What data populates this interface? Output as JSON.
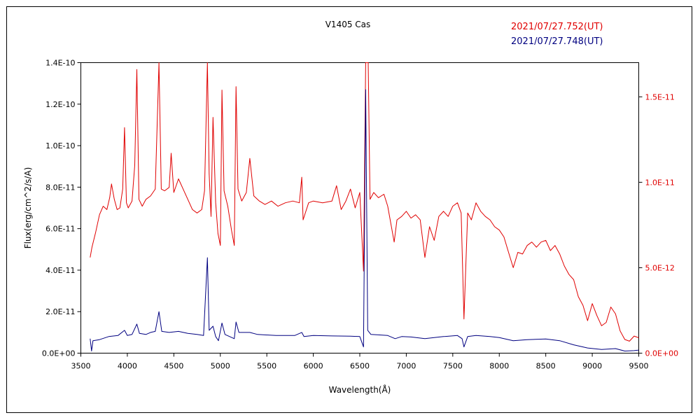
{
  "chart_data": {
    "type": "line",
    "title": "V1405 Cas",
    "xlabel": "Wavelength(Å)",
    "ylabel": "Flux(erg/cm^2/s/A)",
    "xlim": [
      3500,
      9500
    ],
    "ylim_left": [
      0,
      1.4e-10
    ],
    "ylim_right": [
      0,
      1.7e-11
    ],
    "x_ticks": [
      3500,
      4000,
      4500,
      5000,
      5500,
      6000,
      6500,
      7000,
      7500,
      8000,
      8500,
      9000,
      9500
    ],
    "y_left_ticks": [
      {
        "value": 0,
        "label": "0.0E+00"
      },
      {
        "value": 2e-11,
        "label": "2.0E-11"
      },
      {
        "value": 4e-11,
        "label": "4.0E-11"
      },
      {
        "value": 6e-11,
        "label": "6.0E-11"
      },
      {
        "value": 8e-11,
        "label": "8.0E-11"
      },
      {
        "value": 1e-10,
        "label": "1.0E-10"
      },
      {
        "value": 1.2e-10,
        "label": "1.2E-10"
      },
      {
        "value": 1.4e-10,
        "label": "1.4E-10"
      }
    ],
    "y_right_ticks": [
      {
        "value": 0,
        "label": "0.0E+00"
      },
      {
        "value": 5e-12,
        "label": "5.0E-12"
      },
      {
        "value": 1e-11,
        "label": "1.0E-11"
      },
      {
        "value": 1.5e-11,
        "label": "1.5E-11"
      }
    ],
    "grid": false,
    "legend_position": "top-right",
    "series": [
      {
        "name": "2021/07/27.752(UT)",
        "color": "#e00000",
        "axis": "right",
        "points": [
          [
            3600,
            5.6e-12
          ],
          [
            3620,
            6.2e-12
          ],
          [
            3660,
            7.1e-12
          ],
          [
            3700,
            8.1e-12
          ],
          [
            3740,
            8.6e-12
          ],
          [
            3780,
            8.4e-12
          ],
          [
            3810,
            9.1e-12
          ],
          [
            3830,
            9.9e-12
          ],
          [
            3860,
            9e-12
          ],
          [
            3890,
            8.4e-12
          ],
          [
            3920,
            8.5e-12
          ],
          [
            3950,
            9.6e-12
          ],
          [
            3970,
            1.32e-11
          ],
          [
            3990,
            8.8e-12
          ],
          [
            4010,
            8.5e-12
          ],
          [
            4050,
            8.9e-12
          ],
          [
            4080,
            1.1e-11
          ],
          [
            4102,
            1.66e-11
          ],
          [
            4125,
            9e-12
          ],
          [
            4160,
            8.6e-12
          ],
          [
            4200,
            9e-12
          ],
          [
            4250,
            9.2e-12
          ],
          [
            4300,
            9.6e-12
          ],
          [
            4320,
            1.32e-11
          ],
          [
            4340,
            1.71e-11
          ],
          [
            4365,
            9.6e-12
          ],
          [
            4400,
            9.5e-12
          ],
          [
            4450,
            9.7e-12
          ],
          [
            4471,
            1.17e-11
          ],
          [
            4500,
            9.4e-12
          ],
          [
            4550,
            1.02e-11
          ],
          [
            4600,
            9.6e-12
          ],
          [
            4650,
            9e-12
          ],
          [
            4700,
            8.4e-12
          ],
          [
            4750,
            8.2e-12
          ],
          [
            4800,
            8.4e-12
          ],
          [
            4830,
            9.5e-12
          ],
          [
            4861,
            1.71e-11
          ],
          [
            4880,
            1.05e-11
          ],
          [
            4900,
            8e-12
          ],
          [
            4921,
            1.38e-11
          ],
          [
            4950,
            8.8e-12
          ],
          [
            4975,
            7e-12
          ],
          [
            5000,
            6.3e-12
          ],
          [
            5018,
            1.54e-11
          ],
          [
            5040,
            9.5e-12
          ],
          [
            5080,
            8.6e-12
          ],
          [
            5120,
            7.2e-12
          ],
          [
            5150,
            6.3e-12
          ],
          [
            5169,
            1.56e-11
          ],
          [
            5190,
            9.6e-12
          ],
          [
            5230,
            8.9e-12
          ],
          [
            5280,
            9.4e-12
          ],
          [
            5317,
            1.14e-11
          ],
          [
            5360,
            9.2e-12
          ],
          [
            5420,
            8.9e-12
          ],
          [
            5480,
            8.7e-12
          ],
          [
            5550,
            8.9e-12
          ],
          [
            5620,
            8.6e-12
          ],
          [
            5700,
            8.8e-12
          ],
          [
            5780,
            8.9e-12
          ],
          [
            5850,
            8.8e-12
          ],
          [
            5876,
            1.03e-11
          ],
          [
            5890,
            7.8e-12
          ],
          [
            5950,
            8.8e-12
          ],
          [
            6000,
            8.9e-12
          ],
          [
            6100,
            8.8e-12
          ],
          [
            6200,
            8.9e-12
          ],
          [
            6250,
            9.8e-12
          ],
          [
            6300,
            8.4e-12
          ],
          [
            6350,
            8.9e-12
          ],
          [
            6400,
            9.6e-12
          ],
          [
            6450,
            8.5e-12
          ],
          [
            6500,
            9.4e-12
          ],
          [
            6540,
            4.8e-12
          ],
          [
            6563,
            1.75e-11
          ],
          [
            6590,
            1.75e-11
          ],
          [
            6610,
            9e-12
          ],
          [
            6650,
            9.4e-12
          ],
          [
            6700,
            9.1e-12
          ],
          [
            6760,
            9.3e-12
          ],
          [
            6800,
            8.6e-12
          ],
          [
            6870,
            6.5e-12
          ],
          [
            6900,
            7.8e-12
          ],
          [
            6950,
            8e-12
          ],
          [
            7000,
            8.3e-12
          ],
          [
            7050,
            7.9e-12
          ],
          [
            7100,
            8.1e-12
          ],
          [
            7150,
            7.8e-12
          ],
          [
            7200,
            5.6e-12
          ],
          [
            7250,
            7.4e-12
          ],
          [
            7300,
            6.6e-12
          ],
          [
            7350,
            8e-12
          ],
          [
            7400,
            8.3e-12
          ],
          [
            7450,
            8e-12
          ],
          [
            7500,
            8.6e-12
          ],
          [
            7550,
            8.8e-12
          ],
          [
            7590,
            8.2e-12
          ],
          [
            7620,
            2e-12
          ],
          [
            7660,
            8.2e-12
          ],
          [
            7700,
            7.8e-12
          ],
          [
            7750,
            8.8e-12
          ],
          [
            7800,
            8.3e-12
          ],
          [
            7850,
            8e-12
          ],
          [
            7900,
            7.8e-12
          ],
          [
            7950,
            7.4e-12
          ],
          [
            8000,
            7.2e-12
          ],
          [
            8050,
            6.8e-12
          ],
          [
            8100,
            5.9e-12
          ],
          [
            8150,
            5e-12
          ],
          [
            8200,
            5.9e-12
          ],
          [
            8250,
            5.8e-12
          ],
          [
            8300,
            6.3e-12
          ],
          [
            8350,
            6.5e-12
          ],
          [
            8400,
            6.2e-12
          ],
          [
            8450,
            6.5e-12
          ],
          [
            8500,
            6.6e-12
          ],
          [
            8550,
            6e-12
          ],
          [
            8600,
            6.3e-12
          ],
          [
            8650,
            5.8e-12
          ],
          [
            8700,
            5.1e-12
          ],
          [
            8750,
            4.6e-12
          ],
          [
            8800,
            4.3e-12
          ],
          [
            8850,
            3.3e-12
          ],
          [
            8900,
            2.8e-12
          ],
          [
            8950,
            1.9e-12
          ],
          [
            9000,
            2.9e-12
          ],
          [
            9050,
            2.2e-12
          ],
          [
            9100,
            1.6e-12
          ],
          [
            9150,
            1.8e-12
          ],
          [
            9200,
            2.7e-12
          ],
          [
            9250,
            2.3e-12
          ],
          [
            9300,
            1.3e-12
          ],
          [
            9350,
            8e-13
          ],
          [
            9400,
            7e-13
          ],
          [
            9450,
            1e-12
          ],
          [
            9500,
            9e-13
          ]
        ]
      },
      {
        "name": "2021/07/27.748(UT)",
        "color": "#000080",
        "axis": "left",
        "points": [
          [
            3600,
            7e-12
          ],
          [
            3615,
            1e-12
          ],
          [
            3630,
            6e-12
          ],
          [
            3700,
            6.5e-12
          ],
          [
            3800,
            8e-12
          ],
          [
            3900,
            8.5e-12
          ],
          [
            3970,
            1.1e-11
          ],
          [
            4000,
            8.5e-12
          ],
          [
            4050,
            9e-12
          ],
          [
            4102,
            1.4e-11
          ],
          [
            4130,
            9.5e-12
          ],
          [
            4200,
            9e-12
          ],
          [
            4250,
            1e-11
          ],
          [
            4300,
            1.05e-11
          ],
          [
            4340,
            2e-11
          ],
          [
            4370,
            1.05e-11
          ],
          [
            4450,
            1e-11
          ],
          [
            4550,
            1.05e-11
          ],
          [
            4650,
            9.5e-12
          ],
          [
            4750,
            9e-12
          ],
          [
            4820,
            8.5e-12
          ],
          [
            4861,
            4.6e-11
          ],
          [
            4880,
            1.1e-11
          ],
          [
            4921,
            1.3e-11
          ],
          [
            4950,
            8e-12
          ],
          [
            4980,
            6e-12
          ],
          [
            5018,
            1.45e-11
          ],
          [
            5050,
            9e-12
          ],
          [
            5150,
            7e-12
          ],
          [
            5169,
            1.5e-11
          ],
          [
            5200,
            1e-11
          ],
          [
            5317,
            1e-11
          ],
          [
            5400,
            9e-12
          ],
          [
            5600,
            8.5e-12
          ],
          [
            5800,
            8.5e-12
          ],
          [
            5876,
            1e-11
          ],
          [
            5900,
            8e-12
          ],
          [
            6000,
            8.5e-12
          ],
          [
            6200,
            8.3e-12
          ],
          [
            6400,
            8.2e-12
          ],
          [
            6500,
            8e-12
          ],
          [
            6540,
            3e-12
          ],
          [
            6563,
            1.27e-10
          ],
          [
            6585,
            1.1e-11
          ],
          [
            6620,
            9e-12
          ],
          [
            6700,
            8.8e-12
          ],
          [
            6800,
            8.5e-12
          ],
          [
            6880,
            7e-12
          ],
          [
            6950,
            8e-12
          ],
          [
            7050,
            7.8e-12
          ],
          [
            7200,
            7e-12
          ],
          [
            7300,
            7.5e-12
          ],
          [
            7400,
            8e-12
          ],
          [
            7550,
            8.5e-12
          ],
          [
            7600,
            7e-12
          ],
          [
            7620,
            3e-12
          ],
          [
            7660,
            8e-12
          ],
          [
            7750,
            8.5e-12
          ],
          [
            7900,
            8e-12
          ],
          [
            8000,
            7.5e-12
          ],
          [
            8150,
            6e-12
          ],
          [
            8300,
            6.5e-12
          ],
          [
            8500,
            6.8e-12
          ],
          [
            8650,
            6e-12
          ],
          [
            8800,
            4e-12
          ],
          [
            8950,
            2.5e-12
          ],
          [
            9100,
            1.8e-12
          ],
          [
            9250,
            2.2e-12
          ],
          [
            9350,
            1e-12
          ],
          [
            9450,
            1.2e-12
          ],
          [
            9500,
            1.5e-12
          ]
        ]
      }
    ]
  }
}
